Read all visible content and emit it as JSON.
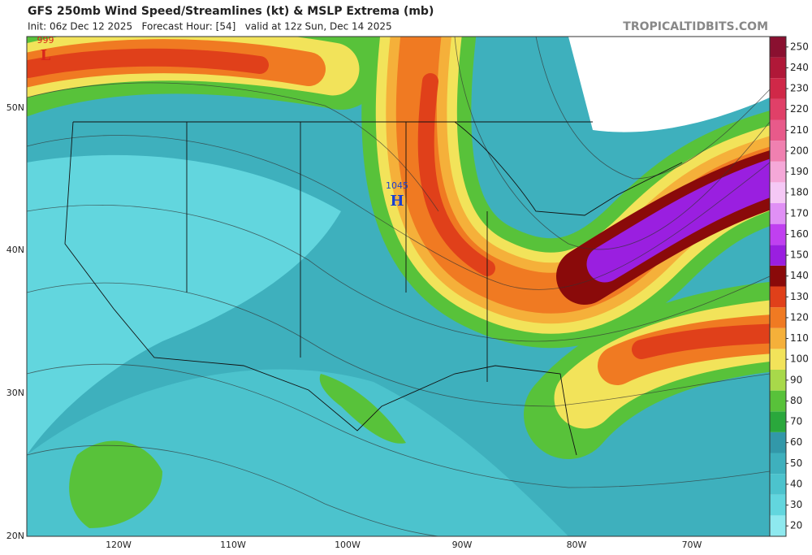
{
  "header": {
    "title": "GFS 250mb Wind Speed/Streamlines (kt) & MSLP Extrema (mb)",
    "subtitle": "Init: 06z Dec 12 2025   Forecast Hour: [54]   valid at 12z Sun, Dec 14 2025",
    "source": "TROPICALTIDBITS.COM"
  },
  "map": {
    "latitude_labels": [
      "50N",
      "40N",
      "30N",
      "20N"
    ],
    "longitude_labels": [
      "120W",
      "110W",
      "100W",
      "90W",
      "80W",
      "70W"
    ],
    "pressure_extrema": [
      {
        "value": "999",
        "symbol": "L"
      },
      {
        "value": "1045",
        "symbol": "H"
      }
    ]
  },
  "colorbar": {
    "lim": [
      15,
      255
    ],
    "ticks": [
      20,
      30,
      40,
      50,
      60,
      70,
      80,
      90,
      100,
      110,
      120,
      130,
      140,
      150,
      160,
      170,
      180,
      190,
      200,
      210,
      220,
      230,
      240,
      250
    ],
    "colors": [
      "#8ee9ef",
      "#62d6de",
      "#4cc3cd",
      "#3eb0bd",
      "#3298a9",
      "#2aa83c",
      "#58c23a",
      "#a8d94a",
      "#f2e35a",
      "#f5b03a",
      "#f07a22",
      "#e0401a",
      "#8a0a0a",
      "#9a1fe0",
      "#c040f0",
      "#e090f5",
      "#f5c8f5",
      "#f5a8d8",
      "#f080b0",
      "#e85a8a",
      "#e04068",
      "#d02848",
      "#b01838",
      "#8a1030"
    ]
  }
}
